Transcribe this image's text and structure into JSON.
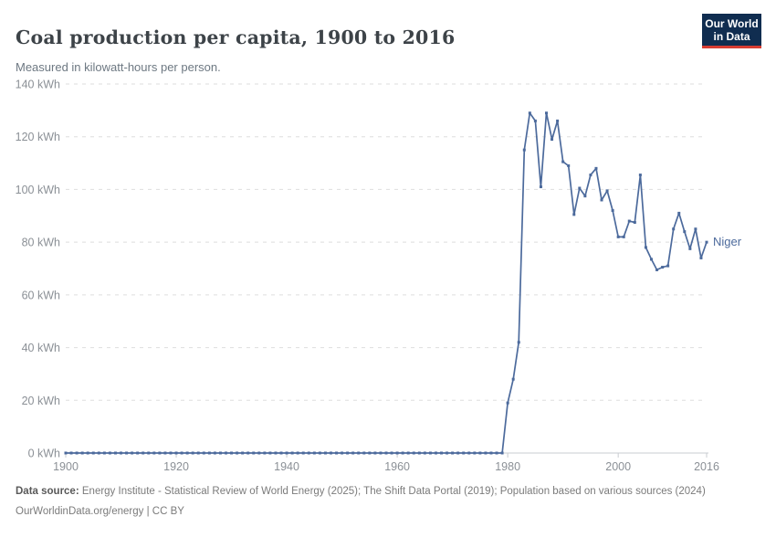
{
  "header": {
    "title": "Coal production per capita, 1900 to 2016",
    "subtitle": "Measured in kilowatt-hours per person."
  },
  "logo": {
    "line1": "Our World",
    "line2": "in Data"
  },
  "chart_data": {
    "type": "line",
    "title": "Coal production per capita, 1900 to 2016",
    "ylabel": "",
    "xlabel": "",
    "unit": "kWh per person",
    "xlim": [
      1900,
      2016
    ],
    "ylim": [
      0,
      140
    ],
    "x_ticks": [
      1900,
      1920,
      1940,
      1960,
      1980,
      2000,
      2016
    ],
    "y_ticks": [
      0,
      20,
      40,
      60,
      80,
      100,
      120,
      140
    ],
    "y_tick_suffix": " kWh",
    "grid": "horizontal-dashed",
    "legend_position": "end-of-line",
    "entity_label": "Niger",
    "line_color": "#4c6a9c",
    "series": [
      {
        "name": "Niger",
        "x_start": 1900,
        "x_step": 1,
        "values": [
          0,
          0,
          0,
          0,
          0,
          0,
          0,
          0,
          0,
          0,
          0,
          0,
          0,
          0,
          0,
          0,
          0,
          0,
          0,
          0,
          0,
          0,
          0,
          0,
          0,
          0,
          0,
          0,
          0,
          0,
          0,
          0,
          0,
          0,
          0,
          0,
          0,
          0,
          0,
          0,
          0,
          0,
          0,
          0,
          0,
          0,
          0,
          0,
          0,
          0,
          0,
          0,
          0,
          0,
          0,
          0,
          0,
          0,
          0,
          0,
          0,
          0,
          0,
          0,
          0,
          0,
          0,
          0,
          0,
          0,
          0,
          0,
          0,
          0,
          0,
          0,
          0,
          0,
          0,
          0,
          19,
          28,
          42,
          115,
          129,
          126,
          101,
          129,
          119,
          126,
          110.5,
          109,
          90.5,
          100.5,
          97.5,
          105.5,
          108,
          96,
          99.5,
          92,
          82,
          82,
          88,
          87.5,
          105.5,
          78,
          73.5,
          69.5,
          70.5,
          71,
          85,
          91,
          84,
          77.5,
          85,
          74,
          80
        ]
      }
    ]
  },
  "footer": {
    "source_label": "Data source:",
    "source_text": "Energy Institute - Statistical Review of World Energy (2025); The Shift Data Portal (2019); Population based on various sources (2024)",
    "note": "OurWorldinData.org/energy | CC BY"
  },
  "colors": {
    "line": "#4c6a9c",
    "grid": "#dedede",
    "axis": "#c9ccd0",
    "tick_text": "#8b9096",
    "logo_bg": "#102d50",
    "logo_accent": "#d73c32"
  }
}
